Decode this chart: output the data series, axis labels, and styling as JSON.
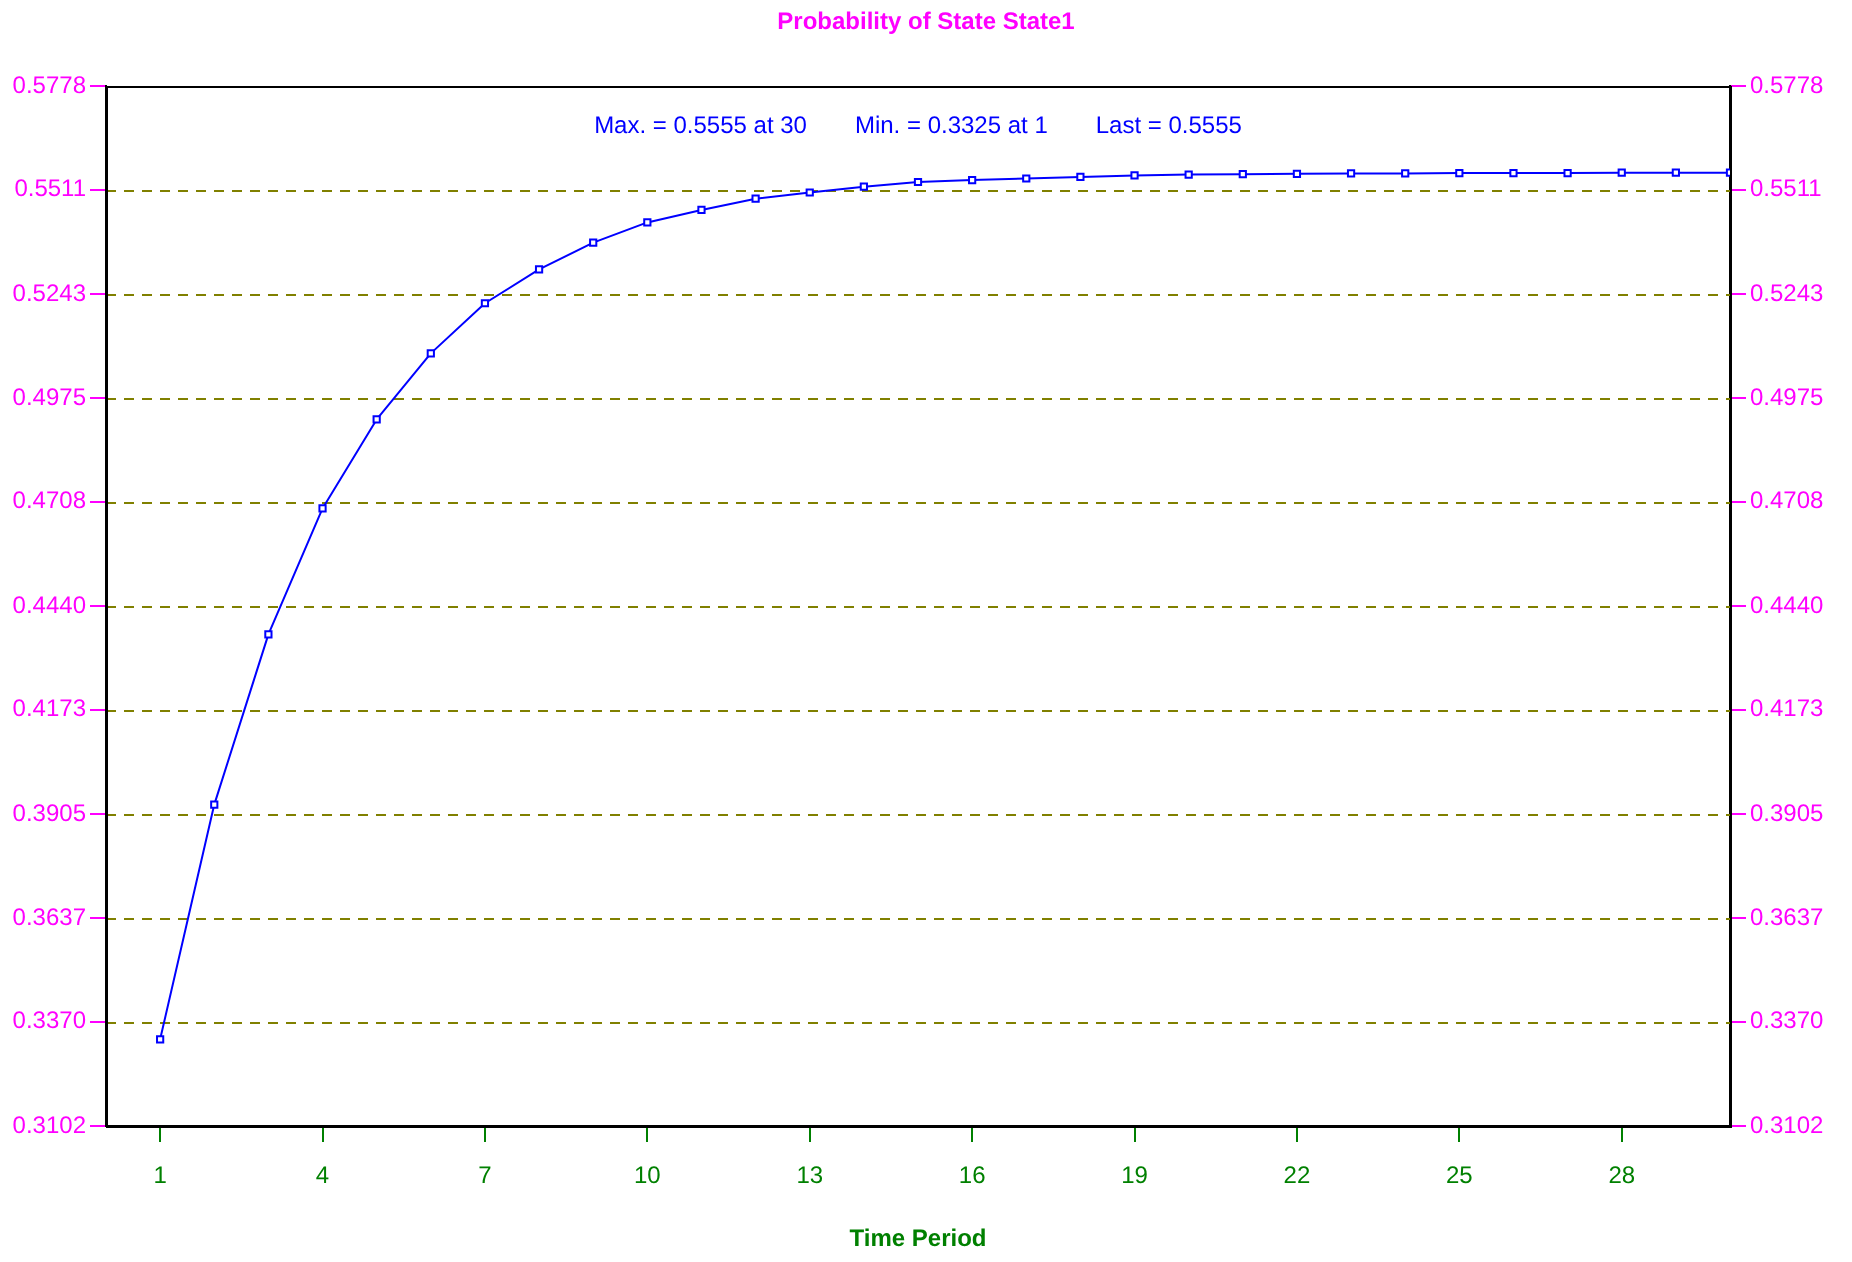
{
  "chart_data": {
    "type": "line",
    "title": "Probability of State State1",
    "xlabel": "Time Period",
    "annotations": [
      "Max. = 0.5555 at 30    Min. = 0.3325 at 1    Last = 0.5555"
    ],
    "x": [
      1,
      2,
      3,
      4,
      5,
      6,
      7,
      8,
      9,
      10,
      11,
      12,
      13,
      14,
      15,
      16,
      17,
      18,
      19,
      20,
      21,
      22,
      23,
      24,
      25,
      26,
      27,
      28,
      29,
      30
    ],
    "series": [
      {
        "color": "#0000ff",
        "values": [
          0.3325,
          0.3929,
          0.4367,
          0.4691,
          0.492,
          0.509,
          0.5219,
          0.5306,
          0.5375,
          0.5427,
          0.5459,
          0.5488,
          0.5504,
          0.5519,
          0.5531,
          0.5536,
          0.554,
          0.5544,
          0.5548,
          0.555,
          0.5551,
          0.5552,
          0.5553,
          0.5553,
          0.5554,
          0.5554,
          0.5554,
          0.5555,
          0.5555,
          0.5555
        ]
      }
    ],
    "xlim": [
      0,
      30
    ],
    "xticks": [
      1,
      4,
      7,
      10,
      13,
      16,
      19,
      22,
      25,
      28
    ],
    "ylim": [
      0.3102,
      0.5778
    ],
    "yticks": [
      0.3102,
      {
        "value": 0.337,
        "label": "0.3370"
      },
      0.3637,
      0.3905,
      0.4173,
      {
        "value": 0.444,
        "label": "0.4440"
      },
      0.4708,
      0.4975,
      0.5243,
      0.5511,
      0.5778
    ],
    "y2lim": [
      0.3102,
      0.5778
    ],
    "y2ticks": [
      0.3102,
      {
        "value": 0.337,
        "label": "0.3370"
      },
      0.3637,
      0.3905,
      0.4173,
      {
        "value": 0.444,
        "label": "0.4440"
      },
      0.4708,
      0.4975,
      0.5243,
      0.5511,
      0.5778
    ],
    "grid": "y",
    "marker": "square",
    "line_style": "solid",
    "legend": false
  }
}
